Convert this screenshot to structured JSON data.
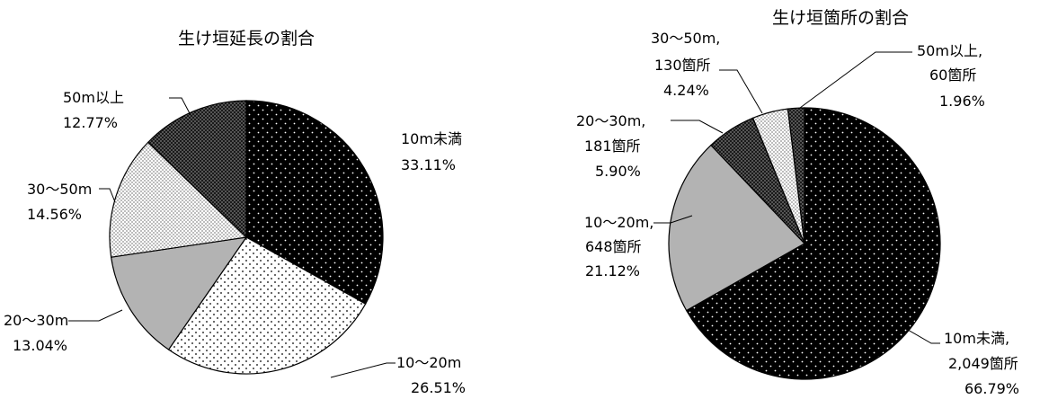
{
  "chart_data": [
    {
      "type": "pie",
      "title": "生け垣延長の割合",
      "slices": [
        {
          "category": "10m未満",
          "percent_label": "33.11%",
          "value": 33.11,
          "pattern": "dark-dots"
        },
        {
          "category": "10～20m",
          "percent_label": "26.51%",
          "value": 26.51,
          "pattern": "light-dots"
        },
        {
          "category": "20～30m",
          "percent_label": "13.04%",
          "value": 13.04,
          "pattern": "gray"
        },
        {
          "category": "30～50m",
          "percent_label": "14.56%",
          "value": 14.56,
          "pattern": "light-check"
        },
        {
          "category": "50m以上",
          "percent_label": "12.77%",
          "value": 12.77,
          "pattern": "dark-check"
        }
      ]
    },
    {
      "type": "pie",
      "title": "生け垣箇所の割合",
      "slices": [
        {
          "category": "10m未満,",
          "count_label": "2,049箇所",
          "percent_label": "66.79%",
          "value": 66.79,
          "count": 2049,
          "pattern": "dark-dots"
        },
        {
          "category": "10～20m,",
          "count_label": "648箇所",
          "percent_label": "21.12%",
          "value": 21.12,
          "count": 648,
          "pattern": "gray"
        },
        {
          "category": "20～30m,",
          "count_label": "181箇所",
          "percent_label": "5.90%",
          "value": 5.9,
          "count": 181,
          "pattern": "dark-check"
        },
        {
          "category": "30～50m,",
          "count_label": "130箇所",
          "percent_label": "4.24%",
          "value": 4.24,
          "count": 130,
          "pattern": "light-check"
        },
        {
          "category": "50m以上,",
          "count_label": "60箇所",
          "percent_label": "1.96%",
          "value": 1.96,
          "count": 60,
          "pattern": "dark-check"
        }
      ]
    }
  ],
  "colors": {
    "dark": "#000000",
    "gray": "#b3b3b3",
    "white": "#ffffff",
    "check_dark": "#333333",
    "check_light": "#d0d0d0"
  }
}
